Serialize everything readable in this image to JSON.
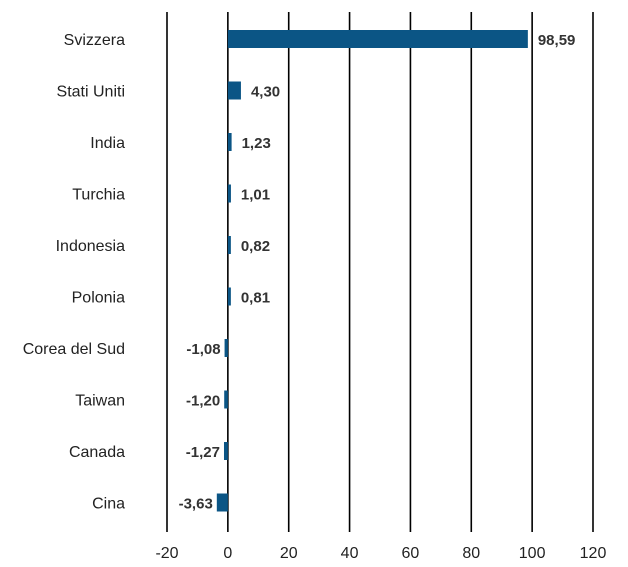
{
  "chart_data": {
    "type": "bar",
    "orientation": "horizontal",
    "categories": [
      "Svizzera",
      "Stati Uniti",
      "India",
      "Turchia",
      "Indonesia",
      "Polonia",
      "Corea del Sud",
      "Taiwan",
      "Canada",
      "Cina"
    ],
    "values": [
      98.59,
      4.3,
      1.23,
      1.01,
      0.82,
      0.81,
      -1.08,
      -1.2,
      -1.27,
      -3.63
    ],
    "value_labels": [
      "98,59",
      "4,30",
      "1,23",
      "1,01",
      "0,82",
      "0,81",
      "-1,08",
      "-1,20",
      "-1,27",
      "-3,63"
    ],
    "xlim": [
      -20,
      120
    ],
    "xticks": [
      -20,
      0,
      20,
      40,
      60,
      80,
      100,
      120
    ],
    "xtick_labels": [
      "-20",
      "0",
      "20",
      "40",
      "60",
      "80",
      "100",
      "120"
    ],
    "grid": "vertical",
    "legend": "none",
    "title": "",
    "xlabel": "",
    "ylabel": "",
    "bar_color": "#0b5585"
  }
}
